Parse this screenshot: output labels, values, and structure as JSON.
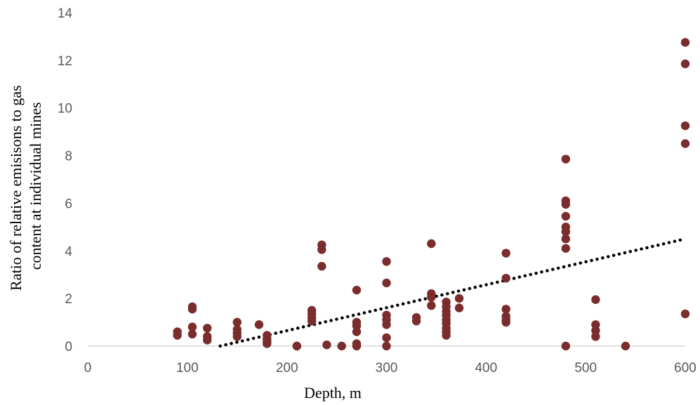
{
  "chart_data": {
    "type": "scatter",
    "title": "",
    "xlabel": "Depth, m",
    "ylabel_lines": [
      "Ratio of relative  emisisons to gas",
      "content at individual mines"
    ],
    "xlim": [
      0,
      600
    ],
    "ylim": [
      0,
      14
    ],
    "x_ticks": [
      0,
      100,
      200,
      300,
      400,
      500,
      600
    ],
    "y_ticks": [
      0,
      2,
      4,
      6,
      8,
      10,
      12,
      14
    ],
    "grid": false,
    "legend": "none",
    "marker_color": "#7b2c2c",
    "trendline": {
      "type": "linear",
      "style": "dotted",
      "color": "#000000",
      "x": [
        133,
        600
      ],
      "y": [
        0,
        4.5
      ]
    },
    "points": [
      [
        90,
        0.6
      ],
      [
        90,
        0.45
      ],
      [
        105,
        1.65
      ],
      [
        105,
        1.55
      ],
      [
        105,
        0.8
      ],
      [
        105,
        0.5
      ],
      [
        120,
        0.75
      ],
      [
        120,
        0.4
      ],
      [
        120,
        0.25
      ],
      [
        150,
        1.0
      ],
      [
        150,
        0.7
      ],
      [
        150,
        0.55
      ],
      [
        150,
        0.4
      ],
      [
        172,
        0.9
      ],
      [
        180,
        0.45
      ],
      [
        180,
        0.3
      ],
      [
        180,
        0.2
      ],
      [
        180,
        0.1
      ],
      [
        210,
        0.0
      ],
      [
        210,
        0.0
      ],
      [
        225,
        1.5
      ],
      [
        225,
        1.35
      ],
      [
        225,
        1.2
      ],
      [
        225,
        1.05
      ],
      [
        235,
        4.25
      ],
      [
        235,
        4.05
      ],
      [
        235,
        3.35
      ],
      [
        240,
        0.05
      ],
      [
        255,
        0.0
      ],
      [
        270,
        2.35
      ],
      [
        270,
        1.0
      ],
      [
        270,
        0.85
      ],
      [
        270,
        0.6
      ],
      [
        270,
        0.1
      ],
      [
        270,
        0.0
      ],
      [
        300,
        3.55
      ],
      [
        300,
        2.65
      ],
      [
        300,
        1.3
      ],
      [
        300,
        1.1
      ],
      [
        300,
        0.9
      ],
      [
        300,
        0.35
      ],
      [
        300,
        0.0
      ],
      [
        330,
        1.2
      ],
      [
        330,
        1.05
      ],
      [
        345,
        4.3
      ],
      [
        345,
        2.2
      ],
      [
        345,
        2.05
      ],
      [
        345,
        1.7
      ],
      [
        360,
        1.85
      ],
      [
        360,
        1.65
      ],
      [
        360,
        1.45
      ],
      [
        360,
        1.3
      ],
      [
        360,
        1.1
      ],
      [
        360,
        0.95
      ],
      [
        360,
        0.75
      ],
      [
        360,
        0.6
      ],
      [
        360,
        0.45
      ],
      [
        373,
        2.0
      ],
      [
        373,
        1.6
      ],
      [
        420,
        3.9
      ],
      [
        420,
        2.85
      ],
      [
        420,
        1.55
      ],
      [
        420,
        1.25
      ],
      [
        420,
        1.1
      ],
      [
        420,
        1.0
      ],
      [
        480,
        7.85
      ],
      [
        480,
        6.1
      ],
      [
        480,
        5.95
      ],
      [
        480,
        5.45
      ],
      [
        480,
        5.0
      ],
      [
        480,
        4.8
      ],
      [
        480,
        4.5
      ],
      [
        480,
        4.1
      ],
      [
        480,
        0.0
      ],
      [
        510,
        1.95
      ],
      [
        510,
        0.9
      ],
      [
        510,
        0.65
      ],
      [
        510,
        0.4
      ],
      [
        540,
        0.0
      ],
      [
        600,
        12.75
      ],
      [
        600,
        11.85
      ],
      [
        600,
        9.25
      ],
      [
        600,
        8.5
      ],
      [
        600,
        1.35
      ]
    ]
  }
}
